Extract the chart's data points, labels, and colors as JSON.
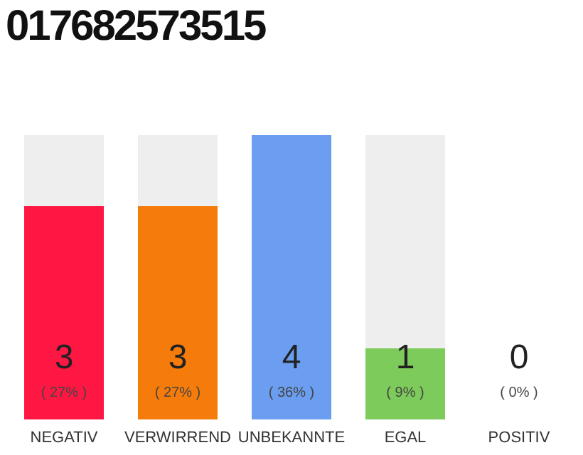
{
  "chart_data": {
    "type": "bar",
    "title": "017682573515",
    "categories": [
      "NEGATIV",
      "VERWIRREND",
      "UNBEKANNTE",
      "EGAL",
      "POSITIV"
    ],
    "values": [
      3,
      3,
      4,
      1,
      0
    ],
    "colors": [
      "#ff1744",
      "#f57c0a",
      "#6b9ef0",
      "#7ccb5b",
      "#bdbdbd"
    ],
    "ylim": [
      0,
      4
    ],
    "tick_labels": "x",
    "data_labels": true,
    "annotations": [
      "( 27% )",
      "( 27% )",
      "( 36% )",
      "( 9% )",
      "( 0% )"
    ]
  }
}
